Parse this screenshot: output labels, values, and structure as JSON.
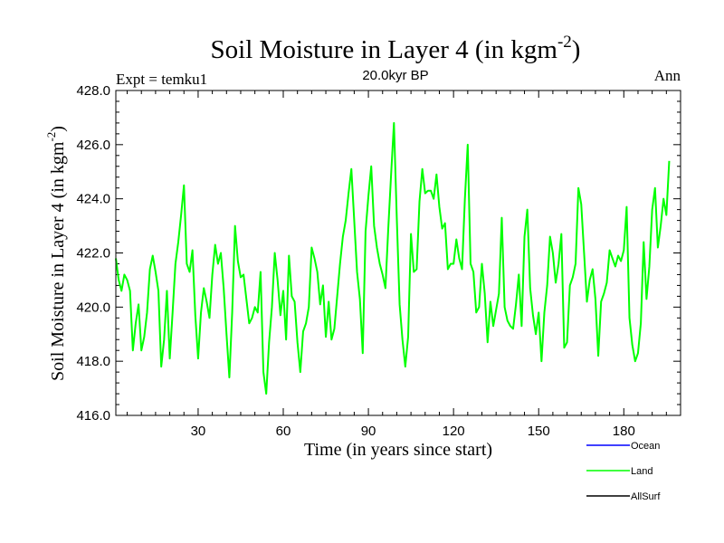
{
  "chart_data": {
    "type": "line",
    "title": "Soil Moisture in Layer 4 (in kgm",
    "title_sup": "-2",
    "title_close": ")",
    "subtitle": "20.0kyr BP",
    "left_label": "Expt = temku1",
    "right_label": "Ann",
    "xlabel": "Time (in years since start)",
    "ylabel": "Soil Moisture in Layer 4 (in kgm",
    "ylabel_sup": "-2",
    "ylabel_close": ")",
    "xlim": [
      1,
      200
    ],
    "ylim": [
      416.0,
      428.0
    ],
    "x_ticks": [
      30,
      60,
      90,
      120,
      150,
      180
    ],
    "y_ticks": [
      "416.0",
      "418.0",
      "420.0",
      "422.0",
      "424.0",
      "426.0",
      "428.0"
    ],
    "legend": [
      {
        "name": "Ocean",
        "color": "#0000ff"
      },
      {
        "name": "Land",
        "color": "#00ff00"
      },
      {
        "name": "AllSurf",
        "color": "#000000"
      }
    ],
    "series": [
      {
        "name": "Land",
        "color": "#00ff00",
        "values": [
          421.8,
          421.0,
          420.6,
          421.2,
          421.0,
          420.6,
          418.4,
          419.4,
          420.1,
          418.4,
          418.9,
          419.8,
          421.4,
          421.9,
          421.3,
          420.6,
          417.8,
          418.8,
          420.6,
          418.1,
          419.8,
          421.6,
          422.4,
          423.4,
          424.5,
          421.6,
          421.3,
          422.1,
          419.7,
          418.1,
          419.8,
          420.7,
          420.2,
          419.6,
          421.2,
          422.3,
          421.6,
          422.0,
          420.7,
          419.0,
          417.4,
          419.8,
          423.0,
          421.7,
          421.1,
          421.2,
          420.3,
          419.4,
          419.6,
          420.0,
          419.8,
          421.3,
          417.6,
          416.8,
          418.7,
          420.0,
          422.0,
          421.0,
          419.7,
          420.6,
          418.8,
          421.9,
          420.4,
          420.2,
          418.7,
          417.6,
          419.1,
          419.4,
          420.0,
          422.2,
          421.8,
          421.3,
          420.1,
          420.8,
          418.9,
          420.2,
          418.8,
          419.2,
          420.4,
          421.6,
          422.6,
          423.2,
          424.2,
          425.1,
          423.2,
          421.3,
          420.3,
          418.3,
          422.8,
          424.1,
          425.2,
          423.0,
          422.2,
          421.6,
          421.2,
          420.7,
          422.9,
          424.9,
          426.8,
          423.3,
          420.1,
          418.8,
          417.8,
          418.9,
          422.7,
          421.3,
          421.4,
          423.9,
          425.1,
          424.2,
          424.3,
          424.3,
          424.0,
          424.9,
          423.7,
          422.9,
          423.1,
          421.4,
          421.6,
          421.6,
          422.5,
          421.8,
          421.4,
          424.0,
          426.0,
          421.6,
          421.3,
          419.8,
          420.0,
          421.6,
          420.5,
          418.7,
          420.2,
          419.3,
          419.9,
          420.5,
          423.3,
          420.0,
          419.5,
          419.3,
          419.2,
          420.1,
          421.2,
          419.3,
          422.6,
          423.6,
          420.7,
          419.7,
          419.0,
          419.8,
          418.0,
          419.8,
          420.8,
          422.6,
          422.0,
          420.9,
          421.6,
          422.7,
          418.5,
          418.7,
          420.8,
          421.1,
          421.6,
          424.4,
          423.8,
          422.0,
          420.2,
          421.0,
          421.4,
          420.3,
          418.2,
          420.2,
          420.5,
          420.9,
          422.1,
          421.8,
          421.5,
          421.9,
          421.7,
          422.1,
          423.7,
          419.6,
          418.6,
          418.0,
          418.3,
          419.4,
          422.4,
          420.3,
          421.5,
          423.6,
          424.4,
          422.2,
          423.0,
          424.0,
          423.4,
          425.4
        ]
      }
    ]
  }
}
